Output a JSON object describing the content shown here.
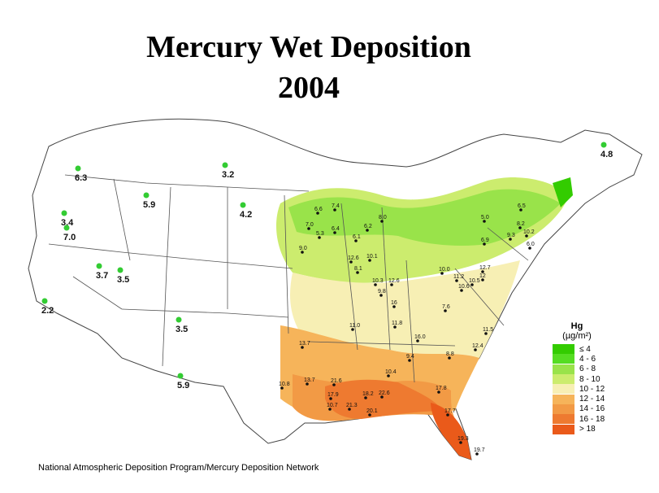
{
  "title": {
    "line1": "Mercury Wet Deposition",
    "line2": "2004"
  },
  "legend": {
    "title": "Hg",
    "unit": "(µg/m²)",
    "classes": [
      {
        "label": "≤ 4",
        "color": "#33cc00"
      },
      {
        "label": "4 - 6",
        "color": "#55dd22"
      },
      {
        "label": "6 - 8",
        "color": "#99e34a"
      },
      {
        "label": "8 - 10",
        "color": "#ccec6e"
      },
      {
        "label": "10 - 12",
        "color": "#f7efb4"
      },
      {
        "label": "12 - 14",
        "color": "#f6b45a"
      },
      {
        "label": "14 - 16",
        "color": "#f29a45"
      },
      {
        "label": "16 - 18",
        "color": "#ee7a30"
      },
      {
        "label": "> 18",
        "color": "#ea5a1a"
      }
    ]
  },
  "credit": "National Atmospheric Deposition Program/Mercury Deposition Network",
  "site_values": [
    "6.3",
    "3.4",
    "7.0",
    "5.9",
    "3.2",
    "4.2",
    "3.7",
    "3.5",
    "2.2",
    "3.5",
    "5.9",
    "4.8",
    "7.4",
    "6.6",
    "7.0",
    "6.4",
    "5.3",
    "6.1",
    "6.2",
    "9.0",
    "8.0",
    "5.0",
    "6.5",
    "8.2",
    "9.3",
    "6.9",
    "10.2",
    "6.0",
    "12.6",
    "10.1",
    "8.1",
    "10.3",
    "12.6",
    "9.8",
    "16",
    "11.0",
    "11.8",
    "10.0",
    "11.2",
    "10.5",
    "10.6",
    "12.7",
    "12",
    "7.6",
    "16.0",
    "11.5",
    "13.7",
    "8.8",
    "12.4",
    "9.4",
    "10.4",
    "13.7",
    "10.8",
    "21.6",
    "17.9",
    "18.2",
    "22.6",
    "10.7",
    "21.3",
    "20.1",
    "17.8",
    "17.7",
    "19.3",
    "19.7"
  ]
}
